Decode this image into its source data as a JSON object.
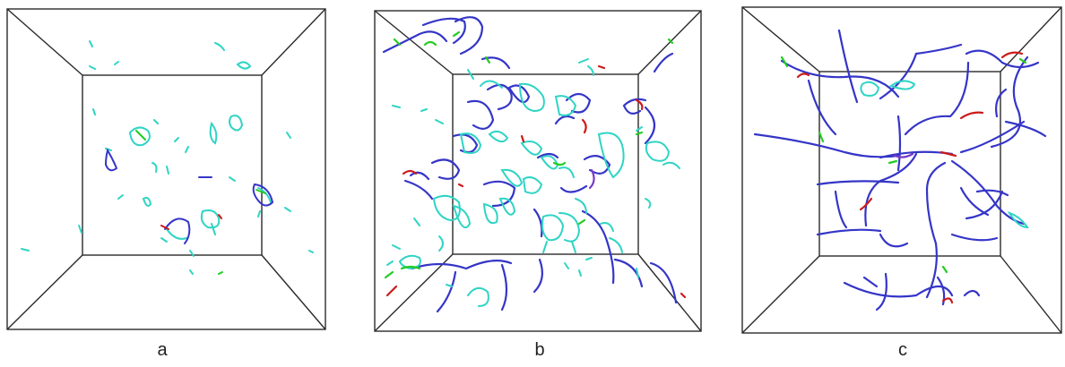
{
  "panels": [
    {
      "id": "a",
      "label": "a"
    },
    {
      "id": "b",
      "label": "b"
    },
    {
      "id": "c",
      "label": "c"
    }
  ],
  "colors": {
    "box_edge": "#2a2a2a",
    "loop_cyan": "#2fd4c4",
    "line_blue": "#3535c8",
    "accent_green": "#22cc22",
    "accent_red": "#cc1a1a",
    "accent_purple": "#7a3ac8"
  }
}
